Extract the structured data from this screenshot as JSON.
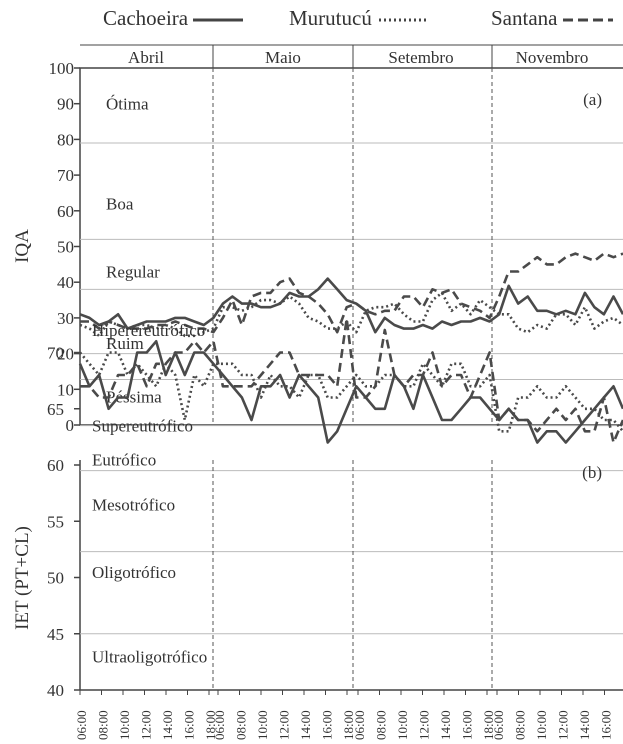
{
  "chart_data": [
    {
      "type": "line",
      "panel_label": "(a)",
      "ylabel": "IQA",
      "ylim": [
        0,
        100
      ],
      "yticks": [
        0,
        10,
        20,
        30,
        40,
        50,
        60,
        70,
        80,
        90,
        100
      ],
      "months": [
        "Abril",
        "Maio",
        "Setembro",
        "Novembro"
      ],
      "x_tick_labels": [
        "06:00",
        "08:00",
        "10:00",
        "12:00",
        "14:00",
        "16:00",
        "18:00"
      ],
      "grid": "horizontal lines at 20, 38, 52, 79",
      "legend_position": "top",
      "bands": [
        {
          "label": "Ótima",
          "y": 90
        },
        {
          "label": "Boa",
          "y": 62
        },
        {
          "label": "Regular",
          "y": 43
        },
        {
          "label": "Ruim",
          "y": 23
        },
        {
          "label": "Péssima",
          "y": 8
        }
      ],
      "series": [
        {
          "name": "Cachoeira",
          "style": "solid",
          "values": [
            31,
            30,
            28,
            29,
            31,
            27,
            28,
            29,
            29,
            29,
            30,
            30,
            29,
            28,
            30,
            34,
            36,
            34,
            34,
            33,
            33,
            34,
            37,
            36,
            36,
            38,
            41,
            38,
            35,
            34,
            32,
            26,
            30,
            28,
            27,
            27,
            28,
            27,
            29,
            28,
            29,
            29,
            30,
            29,
            31,
            39,
            34,
            36,
            32,
            32,
            31,
            32,
            31,
            37,
            33,
            31,
            36,
            31
          ]
        },
        {
          "name": "Murutucú",
          "style": "dotted",
          "values": [
            28,
            27,
            25,
            29,
            28,
            27,
            28,
            28,
            27,
            28,
            27,
            25,
            25,
            26,
            27,
            33,
            33,
            32,
            33,
            35,
            35,
            34,
            36,
            34,
            30,
            29,
            27,
            27,
            29,
            26,
            32,
            33,
            33,
            34,
            31,
            29,
            29,
            35,
            37,
            32,
            34,
            31,
            35,
            33,
            31,
            31,
            27,
            26,
            28,
            27,
            31,
            31,
            28,
            33,
            27,
            29,
            30,
            28
          ]
        },
        {
          "name": "Santana",
          "style": "dashed",
          "values": [
            29,
            29,
            27,
            29,
            28,
            27,
            27,
            27,
            28,
            28,
            29,
            28,
            27,
            27,
            26,
            30,
            35,
            28,
            36,
            37,
            37,
            40,
            41,
            37,
            36,
            34,
            31,
            26,
            33,
            34,
            32,
            31,
            32,
            32,
            36,
            36,
            33,
            38,
            37,
            38,
            34,
            33,
            32,
            30,
            36,
            43,
            43,
            45,
            47,
            45,
            45,
            47,
            48,
            47,
            46,
            48,
            47,
            48
          ]
        }
      ]
    },
    {
      "type": "line",
      "panel_label": "(b)",
      "ylabel": "IET (PT+CL)",
      "ylim": [
        40,
        72
      ],
      "yticks": [
        40,
        45,
        50,
        55,
        60,
        65,
        70
      ],
      "months": [
        "Abril",
        "Maio",
        "Setembro",
        "Novembro"
      ],
      "x_tick_labels": [
        "06:00",
        "08:00",
        "10:00",
        "12:00",
        "14:00",
        "16:00",
        "18:00"
      ],
      "grid": "horizontal lines at 45, 52.3, 59.5, 63.5, 67.6",
      "bands": [
        {
          "label": "Hiperereutrófico",
          "y": 72
        },
        {
          "label": "Supereutrófico",
          "y": 63.5
        },
        {
          "label": "Eutrófico",
          "y": 60.5
        },
        {
          "label": "Mesotrófico",
          "y": 56.5
        },
        {
          "label": "Oligotrófico",
          "y": 50.5
        },
        {
          "label": "Ultraoligotrófico",
          "y": 43
        }
      ],
      "series": [
        {
          "name": "Cachoeira",
          "style": "solid",
          "values": [
            69,
            67,
            68,
            65,
            66,
            66,
            70,
            70,
            71,
            68,
            70,
            68,
            70,
            70,
            69,
            68,
            67,
            66,
            64,
            67,
            67,
            68,
            66,
            68,
            67,
            66,
            62,
            63,
            65,
            67,
            66,
            65,
            65,
            68,
            67,
            65,
            68,
            66,
            64,
            64,
            65,
            66,
            66,
            65,
            64,
            65,
            64,
            64,
            62,
            63,
            63,
            62,
            63,
            64,
            65,
            66,
            67,
            65
          ]
        },
        {
          "name": "Murutucú",
          "style": "dotted",
          "values": [
            70,
            69,
            68,
            70,
            70,
            68,
            69,
            68,
            67,
            69,
            68,
            64,
            68,
            67,
            69,
            69,
            69,
            68,
            68,
            66,
            68,
            67,
            67,
            66,
            68,
            68,
            66,
            66,
            67,
            68,
            67,
            67,
            68,
            68,
            67,
            67,
            69,
            68,
            67,
            69,
            69,
            67,
            67,
            68,
            63,
            63,
            66,
            66,
            67,
            66,
            66,
            67,
            66,
            65,
            65,
            64,
            64,
            63
          ]
        },
        {
          "name": "Santana",
          "style": "dashed",
          "values": [
            67,
            67,
            66,
            66,
            68,
            68,
            69,
            67,
            69,
            69,
            70,
            70,
            71,
            70,
            71,
            67,
            67,
            67,
            67,
            68,
            69,
            70,
            70,
            68,
            68,
            68,
            68,
            67,
            73,
            66,
            66,
            67,
            72,
            68,
            67,
            68,
            68,
            70,
            67,
            68,
            68,
            66,
            68,
            70,
            64,
            65,
            64,
            64,
            63,
            64,
            65,
            64,
            65,
            63,
            63,
            66,
            62,
            64
          ]
        }
      ]
    }
  ],
  "legend": [
    {
      "name": "Cachoeira",
      "style": "solid"
    },
    {
      "name": "Murutucú",
      "style": "dotted"
    },
    {
      "name": "Santana",
      "style": "dashed"
    }
  ]
}
